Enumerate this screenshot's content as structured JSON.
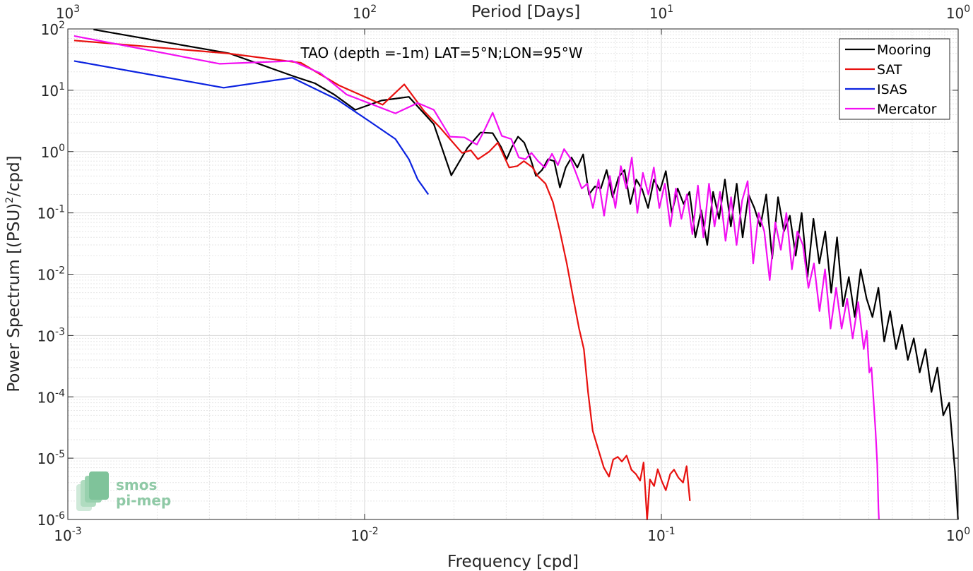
{
  "chart_data": {
    "type": "line",
    "title": "TAO (depth =-1m) LAT=5°N;LON=95°W",
    "xlabel": "Frequency [cpd]",
    "ylabel": "Power Spectrum [(PSU)",
    "ylabel_sup": "2",
    "ylabel_tail": "/cpd]",
    "top_xlabel": "Period [Days]",
    "xscale": "log",
    "yscale": "log",
    "xlim": [
      0.001,
      1
    ],
    "ylim": [
      1e-06,
      100
    ],
    "grid": true,
    "legend_position": "top-right",
    "x_ticks": [
      {
        "value": 0.001,
        "base": "10",
        "exp": "-3"
      },
      {
        "value": 0.01,
        "base": "10",
        "exp": "-2"
      },
      {
        "value": 0.1,
        "base": "10",
        "exp": "-1"
      },
      {
        "value": 1,
        "base": "10",
        "exp": "0"
      }
    ],
    "top_ticks": [
      {
        "freq": 0.001,
        "base": "10",
        "exp": "3"
      },
      {
        "freq": 0.01,
        "base": "10",
        "exp": "2"
      },
      {
        "freq": 0.1,
        "base": "10",
        "exp": "1"
      },
      {
        "freq": 1,
        "base": "10",
        "exp": "0"
      }
    ],
    "y_ticks": [
      {
        "value": 100,
        "base": "10",
        "exp": "2"
      },
      {
        "value": 10,
        "base": "10",
        "exp": "1"
      },
      {
        "value": 1,
        "base": "10",
        "exp": "0"
      },
      {
        "value": 0.1,
        "base": "10",
        "exp": "-1"
      },
      {
        "value": 0.01,
        "base": "10",
        "exp": "-2"
      },
      {
        "value": 0.001,
        "base": "10",
        "exp": "-3"
      },
      {
        "value": 0.0001,
        "base": "10",
        "exp": "-4"
      },
      {
        "value": 1e-05,
        "base": "10",
        "exp": "-5"
      },
      {
        "value": 1e-06,
        "base": "10",
        "exp": "-6"
      }
    ],
    "series": [
      {
        "name": "Mooring",
        "color": "#000000",
        "points": [
          [
            0.00122,
            98
          ],
          [
            0.0035,
            40
          ],
          [
            0.00575,
            17
          ],
          [
            0.0068,
            13
          ],
          [
            0.0079,
            8.5
          ],
          [
            0.0093,
            4.8
          ],
          [
            0.0114,
            6.8
          ],
          [
            0.0141,
            7.8
          ],
          [
            0.0171,
            2.8
          ],
          [
            0.0196,
            0.41
          ],
          [
            0.0222,
            1.15
          ],
          [
            0.0246,
            2.05
          ],
          [
            0.027,
            2.0
          ],
          [
            0.0288,
            1.2
          ],
          [
            0.0301,
            0.75
          ],
          [
            0.0314,
            1.2
          ],
          [
            0.0329,
            1.75
          ],
          [
            0.0345,
            1.4
          ],
          [
            0.0361,
            0.8
          ],
          [
            0.0378,
            0.4
          ],
          [
            0.0396,
            0.5
          ],
          [
            0.0415,
            0.75
          ],
          [
            0.0435,
            0.7
          ],
          [
            0.0455,
            0.26
          ],
          [
            0.0476,
            0.55
          ],
          [
            0.0498,
            0.8
          ],
          [
            0.0521,
            0.55
          ],
          [
            0.0545,
            0.9
          ],
          [
            0.057,
            0.2
          ],
          [
            0.0597,
            0.27
          ],
          [
            0.0625,
            0.25
          ],
          [
            0.0654,
            0.5
          ],
          [
            0.0685,
            0.18
          ],
          [
            0.0717,
            0.38
          ],
          [
            0.0751,
            0.5
          ],
          [
            0.0786,
            0.14
          ],
          [
            0.0823,
            0.35
          ],
          [
            0.0862,
            0.24
          ],
          [
            0.0902,
            0.12
          ],
          [
            0.0944,
            0.35
          ],
          [
            0.0989,
            0.23
          ],
          [
            0.1035,
            0.48
          ],
          [
            0.1084,
            0.1
          ],
          [
            0.1135,
            0.25
          ],
          [
            0.1188,
            0.14
          ],
          [
            0.1244,
            0.22
          ],
          [
            0.1302,
            0.04
          ],
          [
            0.1363,
            0.11
          ],
          [
            0.1427,
            0.03
          ],
          [
            0.1494,
            0.22
          ],
          [
            0.1564,
            0.08
          ],
          [
            0.1637,
            0.35
          ],
          [
            0.1714,
            0.06
          ],
          [
            0.1794,
            0.3
          ],
          [
            0.1878,
            0.04
          ],
          [
            0.1966,
            0.2
          ],
          [
            0.2058,
            0.12
          ],
          [
            0.2155,
            0.06
          ],
          [
            0.2256,
            0.2
          ],
          [
            0.2362,
            0.018
          ],
          [
            0.2472,
            0.18
          ],
          [
            0.2588,
            0.05
          ],
          [
            0.2709,
            0.09
          ],
          [
            0.2836,
            0.02
          ],
          [
            0.2969,
            0.1
          ],
          [
            0.3108,
            0.009
          ],
          [
            0.3254,
            0.08
          ],
          [
            0.3406,
            0.015
          ],
          [
            0.3566,
            0.05
          ],
          [
            0.3733,
            0.005
          ],
          [
            0.3908,
            0.04
          ],
          [
            0.4091,
            0.003
          ],
          [
            0.4283,
            0.009
          ],
          [
            0.4483,
            0.002
          ],
          [
            0.4693,
            0.012
          ],
          [
            0.4913,
            0.004
          ],
          [
            0.5143,
            0.002
          ],
          [
            0.5384,
            0.006
          ],
          [
            0.5636,
            0.0008
          ],
          [
            0.59,
            0.0025
          ],
          [
            0.6176,
            0.0006
          ],
          [
            0.6466,
            0.0015
          ],
          [
            0.6769,
            0.0004
          ],
          [
            0.7086,
            0.0009
          ],
          [
            0.7418,
            0.00025
          ],
          [
            0.7765,
            0.0006
          ],
          [
            0.8129,
            0.00012
          ],
          [
            0.851,
            0.0003
          ],
          [
            0.8908,
            5e-05
          ],
          [
            0.9325,
            8e-05
          ],
          [
            0.9762,
            6e-06
          ],
          [
            0.99,
            2e-06
          ],
          [
            0.999,
            1e-06
          ]
        ]
      },
      {
        "name": "SAT",
        "color": "#e8110f",
        "points": [
          [
            0.00105,
            65
          ],
          [
            0.00345,
            40
          ],
          [
            0.0061,
            28
          ],
          [
            0.0082,
            12
          ],
          [
            0.0115,
            5.8
          ],
          [
            0.0136,
            12.5
          ],
          [
            0.0159,
            4.5
          ],
          [
            0.0179,
            2.5
          ],
          [
            0.0213,
            0.95
          ],
          [
            0.0228,
            1.05
          ],
          [
            0.0241,
            0.75
          ],
          [
            0.0263,
            1.0
          ],
          [
            0.0281,
            1.4
          ],
          [
            0.0307,
            0.55
          ],
          [
            0.0327,
            0.58
          ],
          [
            0.0344,
            0.7
          ],
          [
            0.0368,
            0.55
          ],
          [
            0.0383,
            0.4
          ],
          [
            0.0407,
            0.3
          ],
          [
            0.0431,
            0.15
          ],
          [
            0.0455,
            0.05
          ],
          [
            0.048,
            0.015
          ],
          [
            0.0505,
            0.004
          ],
          [
            0.0528,
            0.0013
          ],
          [
            0.0548,
            0.0006
          ],
          [
            0.0566,
            0.00012
          ],
          [
            0.0587,
            2.8e-05
          ],
          [
            0.0617,
            1.25e-05
          ],
          [
            0.064,
            7e-06
          ],
          [
            0.0666,
            5e-06
          ],
          [
            0.0688,
            9.5e-06
          ],
          [
            0.0713,
            1.05e-05
          ],
          [
            0.0736,
            8.8e-06
          ],
          [
            0.0763,
            1.1e-05
          ],
          [
            0.0792,
            6.5e-06
          ],
          [
            0.0821,
            5.5e-06
          ],
          [
            0.0848,
            4.3e-06
          ],
          [
            0.0871,
            8.5e-06
          ],
          [
            0.0895,
            1e-06
          ],
          [
            0.0915,
            4.5e-06
          ],
          [
            0.0945,
            3.5e-06
          ],
          [
            0.0972,
            6.6e-06
          ],
          [
            0.1004,
            4.2e-06
          ],
          [
            0.1035,
            3e-06
          ],
          [
            0.1071,
            5.5e-06
          ],
          [
            0.1103,
            6.5e-06
          ],
          [
            0.1142,
            4.8e-06
          ],
          [
            0.1183,
            4e-06
          ],
          [
            0.1216,
            7.4e-06
          ],
          [
            0.1248,
            2e-06
          ]
        ]
      },
      {
        "name": "ISAS",
        "color": "#0b22e0",
        "points": [
          [
            0.00105,
            30
          ],
          [
            0.00335,
            11
          ],
          [
            0.0057,
            16
          ],
          [
            0.0081,
            7
          ],
          [
            0.0103,
            3.2
          ],
          [
            0.0127,
            1.6
          ],
          [
            0.0141,
            0.75
          ],
          [
            0.0151,
            0.35
          ],
          [
            0.0164,
            0.2
          ]
        ]
      },
      {
        "name": "Mercator",
        "color": "#f20ff2",
        "points": [
          [
            0.00105,
            77
          ],
          [
            0.00325,
            27
          ],
          [
            0.0057,
            30
          ],
          [
            0.0071,
            19
          ],
          [
            0.0087,
            8.5
          ],
          [
            0.0127,
            4.2
          ],
          [
            0.0151,
            6.2
          ],
          [
            0.0171,
            4.8
          ],
          [
            0.0194,
            1.75
          ],
          [
            0.0217,
            1.7
          ],
          [
            0.0239,
            1.3
          ],
          [
            0.0253,
            2.2
          ],
          [
            0.027,
            4.3
          ],
          [
            0.029,
            1.8
          ],
          [
            0.0312,
            1.6
          ],
          [
            0.0331,
            0.8
          ],
          [
            0.0348,
            0.75
          ],
          [
            0.0365,
            0.95
          ],
          [
            0.0384,
            0.7
          ],
          [
            0.0405,
            0.55
          ],
          [
            0.0428,
            0.92
          ],
          [
            0.0448,
            0.6
          ],
          [
            0.047,
            1.1
          ],
          [
            0.0492,
            0.8
          ],
          [
            0.0515,
            0.45
          ],
          [
            0.0539,
            0.25
          ],
          [
            0.0563,
            0.3
          ],
          [
            0.0588,
            0.12
          ],
          [
            0.0614,
            0.35
          ],
          [
            0.0641,
            0.09
          ],
          [
            0.067,
            0.4
          ],
          [
            0.07,
            0.12
          ],
          [
            0.073,
            0.58
          ],
          [
            0.0762,
            0.25
          ],
          [
            0.0795,
            0.8
          ],
          [
            0.083,
            0.1
          ],
          [
            0.0866,
            0.45
          ],
          [
            0.0904,
            0.2
          ],
          [
            0.0943,
            0.55
          ],
          [
            0.0984,
            0.12
          ],
          [
            0.1027,
            0.3
          ],
          [
            0.1072,
            0.06
          ],
          [
            0.1119,
            0.25
          ],
          [
            0.1168,
            0.08
          ],
          [
            0.1219,
            0.2
          ],
          [
            0.1272,
            0.045
          ],
          [
            0.1328,
            0.28
          ],
          [
            0.1386,
            0.04
          ],
          [
            0.1447,
            0.3
          ],
          [
            0.151,
            0.06
          ],
          [
            0.1576,
            0.22
          ],
          [
            0.1645,
            0.035
          ],
          [
            0.1717,
            0.18
          ],
          [
            0.1792,
            0.03
          ],
          [
            0.1871,
            0.16
          ],
          [
            0.1953,
            0.33
          ],
          [
            0.2038,
            0.015
          ],
          [
            0.2128,
            0.1
          ],
          [
            0.2221,
            0.05
          ],
          [
            0.2318,
            0.008
          ],
          [
            0.242,
            0.07
          ],
          [
            0.2526,
            0.025
          ],
          [
            0.2637,
            0.1
          ],
          [
            0.2753,
            0.012
          ],
          [
            0.2873,
            0.05
          ],
          [
            0.2999,
            0.03
          ],
          [
            0.313,
            0.006
          ],
          [
            0.3267,
            0.015
          ],
          [
            0.341,
            0.0025
          ],
          [
            0.356,
            0.012
          ],
          [
            0.3716,
            0.0013
          ],
          [
            0.3879,
            0.006
          ],
          [
            0.4049,
            0.0013
          ],
          [
            0.4226,
            0.004
          ],
          [
            0.4411,
            0.0009
          ],
          [
            0.4605,
            0.0035
          ],
          [
            0.4807,
            0.0006
          ],
          [
            0.4918,
            0.0012
          ],
          [
            0.5017,
            0.00025
          ],
          [
            0.5103,
            0.0003
          ],
          [
            0.5186,
            9e-05
          ],
          [
            0.5262,
            3e-05
          ],
          [
            0.5337,
            8e-06
          ],
          [
            0.5388,
            1.5e-06
          ],
          [
            0.541,
            1e-06
          ]
        ]
      }
    ]
  },
  "logo": {
    "line1": "smos",
    "line2": "pi-mep"
  }
}
